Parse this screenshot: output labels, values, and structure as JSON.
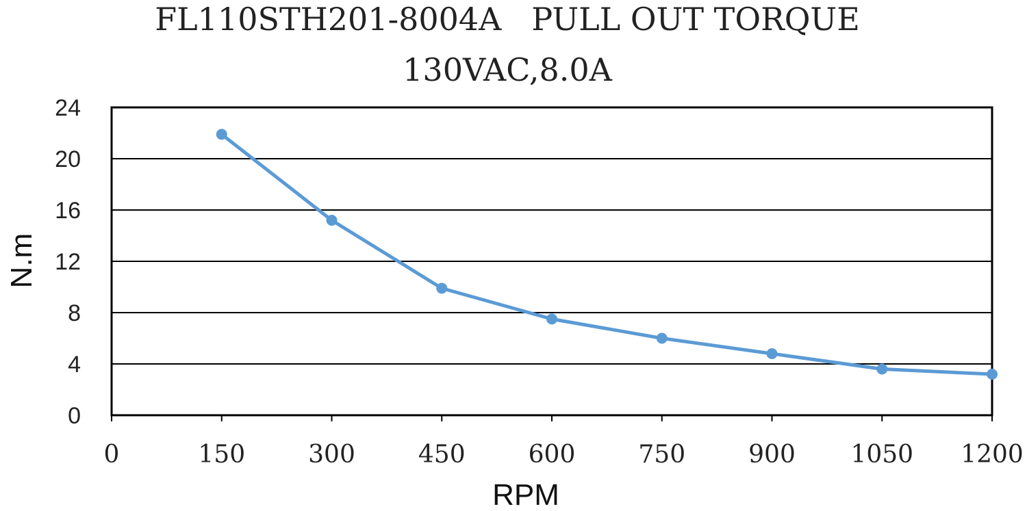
{
  "chart_data": {
    "type": "line",
    "title": "FL110STH201-8004A   PULL OUT TORQUE",
    "subtitle": "130VAC,8.0A",
    "xlabel": "RPM",
    "ylabel": "N.m",
    "xlim": [
      0,
      1200
    ],
    "ylim": [
      0,
      24
    ],
    "x_ticks": [
      0,
      150,
      300,
      450,
      600,
      750,
      900,
      1050,
      1200
    ],
    "y_ticks": [
      0,
      4,
      8,
      12,
      16,
      20,
      24
    ],
    "grid": "horizontal",
    "legend": "none",
    "series": [
      {
        "color": "#5b9bd5",
        "x": [
          150,
          300,
          450,
          600,
          750,
          900,
          1050,
          1200
        ],
        "y": [
          21.9,
          15.2,
          9.9,
          7.5,
          6.0,
          4.8,
          3.6,
          3.2
        ]
      }
    ]
  }
}
